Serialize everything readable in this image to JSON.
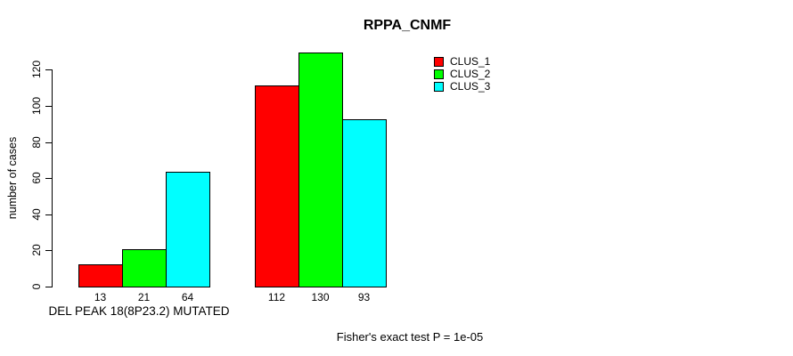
{
  "chart_data": {
    "type": "bar",
    "title": "RPPA_CNMF",
    "ylabel": "number of cases",
    "xlabel": "DEL PEAK 18(8P23.2) MUTATED",
    "footer": "Fisher's exact test P = 1e-05",
    "yticks": [
      0,
      20,
      40,
      60,
      80,
      100,
      120
    ],
    "ylim": [
      0,
      130
    ],
    "grid": false,
    "legend_position": "top-right",
    "bar_value_labels_shown": true,
    "series": [
      {
        "name": "CLUS_1",
        "color": "#ff0000",
        "values": [
          13,
          112
        ]
      },
      {
        "name": "CLUS_2",
        "color": "#00ff00",
        "values": [
          21,
          130
        ]
      },
      {
        "name": "CLUS_3",
        "color": "#00ffff",
        "values": [
          64,
          93
        ]
      }
    ]
  }
}
